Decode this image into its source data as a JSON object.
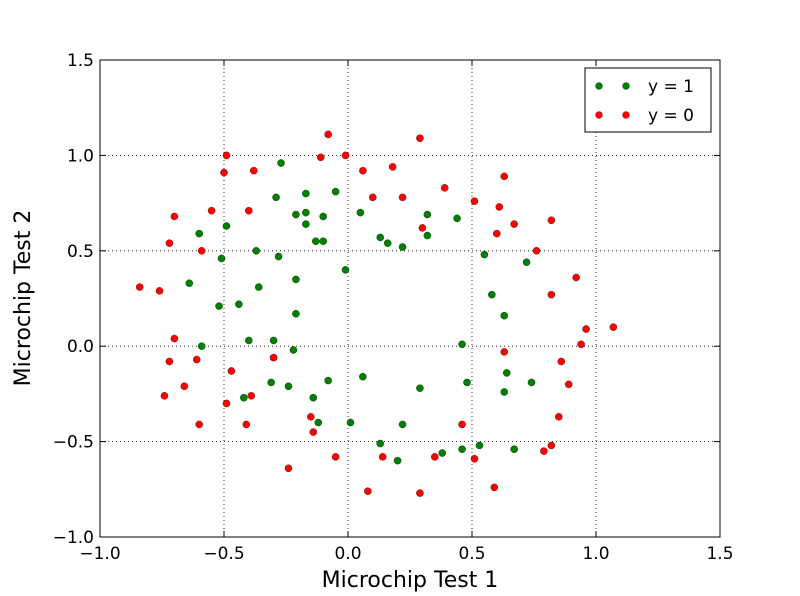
{
  "chart_data": {
    "type": "scatter",
    "title": "",
    "xlabel": "Microchip Test 1",
    "ylabel": "Microchip Test 2",
    "xlim": [
      -1.0,
      1.5
    ],
    "ylim": [
      -1.0,
      1.5
    ],
    "xticks": [
      -1.0,
      -0.5,
      0.0,
      0.5,
      1.0,
      1.5
    ],
    "yticks": [
      -1.0,
      -0.5,
      0.0,
      0.5,
      1.0,
      1.5
    ],
    "xtick_labels": [
      "−1.0",
      "−0.5",
      "0.0",
      "0.5",
      "1.0",
      "1.5"
    ],
    "ytick_labels": [
      "−1.0",
      "−0.5",
      "0.0",
      "0.5",
      "1.0",
      "1.5"
    ],
    "grid": true,
    "legend_position": "top-right",
    "series": [
      {
        "name": "y = 1",
        "color": "#008000",
        "points": [
          [
            -0.27,
            0.96
          ],
          [
            -0.05,
            0.81
          ],
          [
            -0.17,
            0.8
          ],
          [
            -0.29,
            0.78
          ],
          [
            -0.17,
            0.7
          ],
          [
            -0.21,
            0.69
          ],
          [
            -0.1,
            0.68
          ],
          [
            0.05,
            0.7
          ],
          [
            0.32,
            0.69
          ],
          [
            0.44,
            0.67
          ],
          [
            -0.49,
            0.63
          ],
          [
            -0.6,
            0.59
          ],
          [
            -0.17,
            0.64
          ],
          [
            0.13,
            0.57
          ],
          [
            -0.13,
            0.55
          ],
          [
            -0.1,
            0.55
          ],
          [
            0.16,
            0.54
          ],
          [
            0.22,
            0.52
          ],
          [
            0.32,
            0.58
          ],
          [
            -0.37,
            0.5
          ],
          [
            -0.51,
            0.46
          ],
          [
            -0.28,
            0.47
          ],
          [
            0.55,
            0.48
          ],
          [
            0.72,
            0.44
          ],
          [
            -0.01,
            0.4
          ],
          [
            -0.21,
            0.35
          ],
          [
            -0.64,
            0.33
          ],
          [
            -0.36,
            0.31
          ],
          [
            0.58,
            0.27
          ],
          [
            -0.44,
            0.22
          ],
          [
            -0.52,
            0.21
          ],
          [
            -0.21,
            0.17
          ],
          [
            0.63,
            0.16
          ],
          [
            -0.4,
            0.03
          ],
          [
            -0.3,
            0.03
          ],
          [
            -0.59,
            0.0
          ],
          [
            0.46,
            0.01
          ],
          [
            -0.22,
            -0.02
          ],
          [
            0.64,
            -0.14
          ],
          [
            0.06,
            -0.16
          ],
          [
            -0.08,
            -0.18
          ],
          [
            -0.31,
            -0.19
          ],
          [
            0.48,
            -0.19
          ],
          [
            0.74,
            -0.19
          ],
          [
            -0.24,
            -0.21
          ],
          [
            0.29,
            -0.22
          ],
          [
            0.63,
            -0.24
          ],
          [
            -0.42,
            -0.27
          ],
          [
            -0.14,
            -0.27
          ],
          [
            -0.12,
            -0.4
          ],
          [
            0.01,
            -0.4
          ],
          [
            0.22,
            -0.41
          ],
          [
            0.13,
            -0.51
          ],
          [
            0.53,
            -0.52
          ],
          [
            0.46,
            -0.54
          ],
          [
            0.67,
            -0.54
          ],
          [
            0.38,
            -0.56
          ],
          [
            0.2,
            -0.6
          ]
        ]
      },
      {
        "name": "y = 0",
        "color": "#ff0000",
        "points": [
          [
            -0.08,
            1.11
          ],
          [
            0.29,
            1.09
          ],
          [
            -0.49,
            1.0
          ],
          [
            -0.11,
            0.99
          ],
          [
            -0.01,
            1.0
          ],
          [
            0.18,
            0.94
          ],
          [
            -0.5,
            0.91
          ],
          [
            -0.38,
            0.92
          ],
          [
            0.06,
            0.92
          ],
          [
            0.63,
            0.89
          ],
          [
            0.39,
            0.83
          ],
          [
            0.1,
            0.78
          ],
          [
            0.22,
            0.78
          ],
          [
            0.51,
            0.76
          ],
          [
            0.61,
            0.73
          ],
          [
            -0.55,
            0.71
          ],
          [
            -0.4,
            0.71
          ],
          [
            -0.7,
            0.68
          ],
          [
            0.82,
            0.66
          ],
          [
            0.67,
            0.64
          ],
          [
            0.3,
            0.62
          ],
          [
            0.6,
            0.59
          ],
          [
            -0.72,
            0.54
          ],
          [
            -0.59,
            0.5
          ],
          [
            0.76,
            0.5
          ],
          [
            0.92,
            0.36
          ],
          [
            -0.84,
            0.31
          ],
          [
            -0.76,
            0.29
          ],
          [
            0.82,
            0.27
          ],
          [
            1.07,
            0.1
          ],
          [
            0.96,
            0.09
          ],
          [
            -0.7,
            0.04
          ],
          [
            0.94,
            0.01
          ],
          [
            0.63,
            -0.03
          ],
          [
            -0.3,
            -0.06
          ],
          [
            -0.61,
            -0.07
          ],
          [
            -0.72,
            -0.08
          ],
          [
            0.86,
            -0.08
          ],
          [
            -0.47,
            -0.13
          ],
          [
            -0.66,
            -0.21
          ],
          [
            0.89,
            -0.2
          ],
          [
            -0.74,
            -0.26
          ],
          [
            -0.39,
            -0.26
          ],
          [
            -0.49,
            -0.3
          ],
          [
            -0.15,
            -0.37
          ],
          [
            0.85,
            -0.37
          ],
          [
            -0.41,
            -0.41
          ],
          [
            -0.6,
            -0.41
          ],
          [
            0.46,
            -0.41
          ],
          [
            -0.14,
            -0.45
          ],
          [
            0.82,
            -0.52
          ],
          [
            0.79,
            -0.55
          ],
          [
            -0.05,
            -0.58
          ],
          [
            0.14,
            -0.58
          ],
          [
            0.35,
            -0.58
          ],
          [
            0.51,
            -0.59
          ],
          [
            -0.24,
            -0.64
          ],
          [
            0.59,
            -0.74
          ],
          [
            0.08,
            -0.76
          ],
          [
            0.29,
            -0.77
          ]
        ]
      }
    ]
  }
}
